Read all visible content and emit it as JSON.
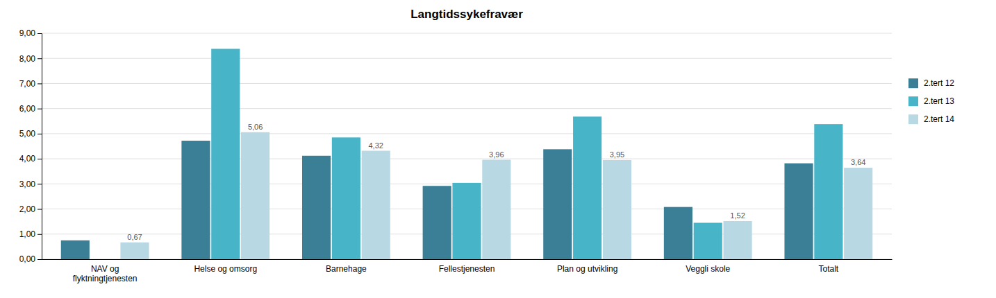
{
  "chart_data": {
    "type": "bar",
    "title": "Langtidssykefravær",
    "categories": [
      "NAV og\nflyktningtjenesten",
      "Helse og omsorg",
      "Barnehage",
      "Fellestjenesten",
      "Plan og utvikling",
      "Veggli skole",
      "Totalt"
    ],
    "series": [
      {
        "name": "2.tert 12",
        "color": "#3A7F96",
        "values": [
          0.75,
          4.72,
          4.12,
          2.92,
          4.38,
          2.08,
          3.82
        ]
      },
      {
        "name": "2.tert 13",
        "color": "#48B4C8",
        "values": [
          null,
          8.38,
          4.85,
          3.04,
          5.68,
          1.45,
          5.38
        ]
      },
      {
        "name": "2.tert 14",
        "color": "#B8D8E4",
        "values": [
          0.67,
          5.06,
          4.32,
          3.96,
          3.95,
          1.52,
          3.64
        ],
        "data_labels": true,
        "value_labels": [
          "0,67",
          "5,06",
          "4,32",
          "3,96",
          "3,95",
          "1,52",
          "3,64"
        ]
      }
    ],
    "ylim": [
      0,
      9.0
    ],
    "yticks": [
      {
        "value": 0.0,
        "label": "0,00"
      },
      {
        "value": 1.0,
        "label": "1,00"
      },
      {
        "value": 2.0,
        "label": "2,00"
      },
      {
        "value": 3.0,
        "label": "3,00"
      },
      {
        "value": 4.0,
        "label": "4,00"
      },
      {
        "value": 5.0,
        "label": "5,00"
      },
      {
        "value": 6.0,
        "label": "6,00"
      },
      {
        "value": 7.0,
        "label": "7,00"
      },
      {
        "value": 8.0,
        "label": "8,00"
      },
      {
        "value": 9.0,
        "label": "9,00"
      }
    ],
    "grid": true,
    "legend": "right"
  }
}
